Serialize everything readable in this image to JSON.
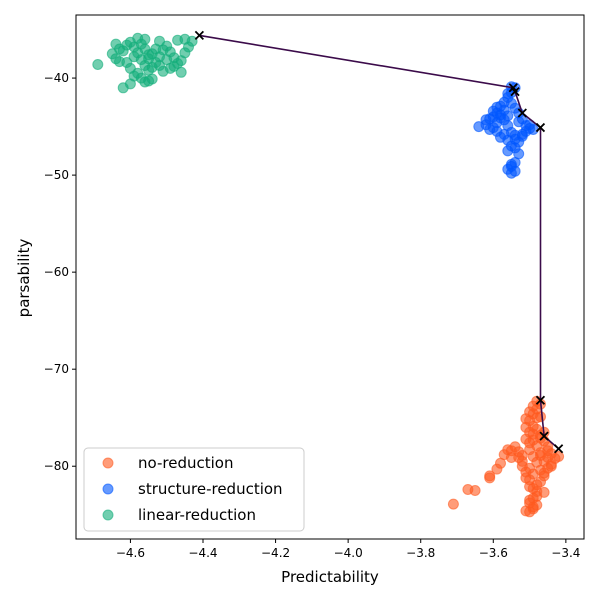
{
  "chart_data": {
    "type": "scatter",
    "xlabel": "Predictability",
    "ylabel": "parsability",
    "xlim": [
      -4.75,
      -3.35
    ],
    "ylim": [
      -87.5,
      -33.5
    ],
    "xticks": [
      -4.6,
      -4.4,
      -4.2,
      -4.0,
      -3.8,
      -3.6,
      -3.4
    ],
    "yticks": [
      -80,
      -70,
      -60,
      -50,
      -40
    ],
    "tick_labels": {
      "x": [
        "−4.6",
        "−4.4",
        "−4.2",
        "−4.0",
        "−3.8",
        "−3.6",
        "−3.4"
      ],
      "y": [
        "−80",
        "−70",
        "−60",
        "−50",
        "−40"
      ]
    },
    "grid": false,
    "legend_position": "lower-left",
    "series": [
      {
        "name": "no-reduction",
        "color": "#ff5a1f",
        "alpha": 0.6,
        "points": [
          [
            -3.71,
            -83.9
          ],
          [
            -3.67,
            -82.4
          ],
          [
            -3.65,
            -82.5
          ],
          [
            -3.61,
            -81.2
          ],
          [
            -3.61,
            -81.0
          ],
          [
            -3.59,
            -80.3
          ],
          [
            -3.58,
            -79.7
          ],
          [
            -3.57,
            -78.8
          ],
          [
            -3.56,
            -78.3
          ],
          [
            -3.55,
            -78.4
          ],
          [
            -3.54,
            -78.0
          ],
          [
            -3.53,
            -79.1
          ],
          [
            -3.52,
            -80.0
          ],
          [
            -3.51,
            -80.6
          ],
          [
            -3.5,
            -81.4
          ],
          [
            -3.49,
            -82.3
          ],
          [
            -3.48,
            -83.1
          ],
          [
            -3.5,
            -83.8
          ],
          [
            -3.49,
            -84.4
          ],
          [
            -3.5,
            -84.7
          ],
          [
            -3.49,
            -84.2
          ],
          [
            -3.5,
            -83.5
          ],
          [
            -3.48,
            -82.6
          ],
          [
            -3.47,
            -81.6
          ],
          [
            -3.46,
            -81.0
          ],
          [
            -3.45,
            -80.2
          ],
          [
            -3.44,
            -79.8
          ],
          [
            -3.43,
            -79.2
          ],
          [
            -3.44,
            -78.7
          ],
          [
            -3.45,
            -78.0
          ],
          [
            -3.46,
            -77.4
          ],
          [
            -3.47,
            -76.8
          ],
          [
            -3.48,
            -76.2
          ],
          [
            -3.49,
            -75.9
          ],
          [
            -3.5,
            -75.3
          ],
          [
            -3.49,
            -74.6
          ],
          [
            -3.48,
            -74.1
          ],
          [
            -3.47,
            -73.6
          ],
          [
            -3.48,
            -73.3
          ],
          [
            -3.5,
            -74.4
          ],
          [
            -3.51,
            -75.1
          ],
          [
            -3.5,
            -76.5
          ],
          [
            -3.51,
            -77.2
          ],
          [
            -3.5,
            -78.3
          ],
          [
            -3.49,
            -79.0
          ],
          [
            -3.48,
            -79.6
          ],
          [
            -3.47,
            -80.4
          ],
          [
            -3.46,
            -79.5
          ],
          [
            -3.45,
            -79.1
          ],
          [
            -3.47,
            -78.6
          ],
          [
            -3.48,
            -77.9
          ],
          [
            -3.46,
            -76.5
          ],
          [
            -3.49,
            -80.8
          ],
          [
            -3.51,
            -81.2
          ],
          [
            -3.5,
            -82.1
          ],
          [
            -3.52,
            -79.5
          ],
          [
            -3.53,
            -78.5
          ],
          [
            -3.49,
            -77.3
          ],
          [
            -3.47,
            -78.9
          ],
          [
            -3.46,
            -80.7
          ],
          [
            -3.44,
            -80.0
          ],
          [
            -3.48,
            -81.9
          ],
          [
            -3.5,
            -80.2
          ],
          [
            -3.52,
            -78.9
          ],
          [
            -3.55,
            -79.1
          ],
          [
            -3.48,
            -75.0
          ],
          [
            -3.49,
            -73.8
          ],
          [
            -3.47,
            -74.9
          ],
          [
            -3.45,
            -78.4
          ],
          [
            -3.42,
            -79.0
          ],
          [
            -3.5,
            -77.6
          ],
          [
            -3.51,
            -76.0
          ],
          [
            -3.49,
            -76.7
          ],
          [
            -3.47,
            -77.1
          ],
          [
            -3.46,
            -82.7
          ],
          [
            -3.48,
            -84.0
          ],
          [
            -3.51,
            -84.6
          ],
          [
            -3.49,
            -83.3
          ]
        ]
      },
      {
        "name": "structure-reduction",
        "color": "#0057ff",
        "alpha": 0.6,
        "points": [
          [
            -3.64,
            -45.0
          ],
          [
            -3.62,
            -44.8
          ],
          [
            -3.61,
            -44.2
          ],
          [
            -3.6,
            -43.4
          ],
          [
            -3.59,
            -43.0
          ],
          [
            -3.58,
            -43.8
          ],
          [
            -3.57,
            -44.3
          ],
          [
            -3.56,
            -44.9
          ],
          [
            -3.55,
            -45.6
          ],
          [
            -3.54,
            -46.3
          ],
          [
            -3.55,
            -47.0
          ],
          [
            -3.54,
            -47.2
          ],
          [
            -3.53,
            -46.6
          ],
          [
            -3.52,
            -46.0
          ],
          [
            -3.51,
            -45.5
          ],
          [
            -3.5,
            -45.2
          ],
          [
            -3.49,
            -45.3
          ],
          [
            -3.5,
            -44.8
          ],
          [
            -3.52,
            -44.2
          ],
          [
            -3.53,
            -43.6
          ],
          [
            -3.54,
            -43.1
          ],
          [
            -3.55,
            -42.6
          ],
          [
            -3.56,
            -42.0
          ],
          [
            -3.55,
            -41.5
          ],
          [
            -3.54,
            -41.0
          ],
          [
            -3.55,
            -40.9
          ],
          [
            -3.56,
            -41.6
          ],
          [
            -3.57,
            -42.5
          ],
          [
            -3.58,
            -42.9
          ],
          [
            -3.59,
            -44.6
          ],
          [
            -3.6,
            -45.1
          ],
          [
            -3.57,
            -45.8
          ],
          [
            -3.56,
            -46.4
          ],
          [
            -3.55,
            -48.9
          ],
          [
            -3.56,
            -49.4
          ],
          [
            -3.55,
            -49.8
          ],
          [
            -3.54,
            -49.6
          ],
          [
            -3.55,
            -49.1
          ],
          [
            -3.54,
            -48.7
          ],
          [
            -3.53,
            -47.8
          ],
          [
            -3.56,
            -47.5
          ],
          [
            -3.58,
            -46.1
          ],
          [
            -3.59,
            -45.5
          ],
          [
            -3.61,
            -45.3
          ],
          [
            -3.62,
            -44.3
          ],
          [
            -3.6,
            -44.0
          ],
          [
            -3.57,
            -43.3
          ],
          [
            -3.53,
            -44.5
          ],
          [
            -3.51,
            -44.9
          ],
          [
            -3.52,
            -45.8
          ],
          [
            -3.54,
            -45.9
          ],
          [
            -3.56,
            -43.9
          ],
          [
            -3.58,
            -44.1
          ],
          [
            -3.59,
            -43.6
          ]
        ]
      },
      {
        "name": "linear-reduction",
        "color": "#12ad7a",
        "alpha": 0.6,
        "points": [
          [
            -4.69,
            -38.6
          ],
          [
            -4.65,
            -37.5
          ],
          [
            -4.64,
            -38.0
          ],
          [
            -4.63,
            -38.3
          ],
          [
            -4.62,
            -37.2
          ],
          [
            -4.61,
            -36.6
          ],
          [
            -4.6,
            -36.3
          ],
          [
            -4.59,
            -36.8
          ],
          [
            -4.58,
            -37.4
          ],
          [
            -4.57,
            -38.1
          ],
          [
            -4.56,
            -38.7
          ],
          [
            -4.55,
            -39.2
          ],
          [
            -4.54,
            -38.9
          ],
          [
            -4.53,
            -38.4
          ],
          [
            -4.52,
            -37.8
          ],
          [
            -4.51,
            -37.1
          ],
          [
            -4.5,
            -36.7
          ],
          [
            -4.49,
            -37.3
          ],
          [
            -4.48,
            -37.9
          ],
          [
            -4.47,
            -38.5
          ],
          [
            -4.46,
            -38.2
          ],
          [
            -4.45,
            -37.4
          ],
          [
            -4.44,
            -36.8
          ],
          [
            -4.43,
            -36.2
          ],
          [
            -4.45,
            -36.0
          ],
          [
            -4.47,
            -36.1
          ],
          [
            -4.52,
            -36.2
          ],
          [
            -4.56,
            -36.0
          ],
          [
            -4.58,
            -35.9
          ],
          [
            -4.6,
            -39.0
          ],
          [
            -4.58,
            -39.5
          ],
          [
            -4.57,
            -40.0
          ],
          [
            -4.56,
            -40.4
          ],
          [
            -4.55,
            -40.3
          ],
          [
            -4.54,
            -40.1
          ],
          [
            -4.62,
            -41.0
          ],
          [
            -4.6,
            -40.6
          ],
          [
            -4.51,
            -39.3
          ],
          [
            -4.49,
            -39.0
          ],
          [
            -4.53,
            -37.0
          ],
          [
            -4.55,
            -37.6
          ],
          [
            -4.57,
            -36.5
          ],
          [
            -4.59,
            -37.8
          ],
          [
            -4.61,
            -38.4
          ],
          [
            -4.5,
            -38.1
          ],
          [
            -4.48,
            -38.8
          ],
          [
            -4.46,
            -39.4
          ],
          [
            -4.54,
            -37.5
          ],
          [
            -4.52,
            -38.7
          ],
          [
            -4.56,
            -37.0
          ],
          [
            -4.63,
            -37.0
          ],
          [
            -4.64,
            -36.5
          ],
          [
            -4.59,
            -39.8
          ],
          [
            -4.55,
            -38.0
          ]
        ]
      }
    ],
    "path": {
      "color": "#3b0b4a",
      "marker": "x",
      "points": [
        [
          -4.41,
          -35.6
        ],
        [
          -3.545,
          -41.0
        ],
        [
          -3.54,
          -41.4
        ],
        [
          -3.52,
          -43.6
        ],
        [
          -3.47,
          -45.1
        ],
        [
          -3.47,
          -73.2
        ],
        [
          -3.46,
          -76.9
        ],
        [
          -3.42,
          -78.2
        ]
      ]
    }
  }
}
